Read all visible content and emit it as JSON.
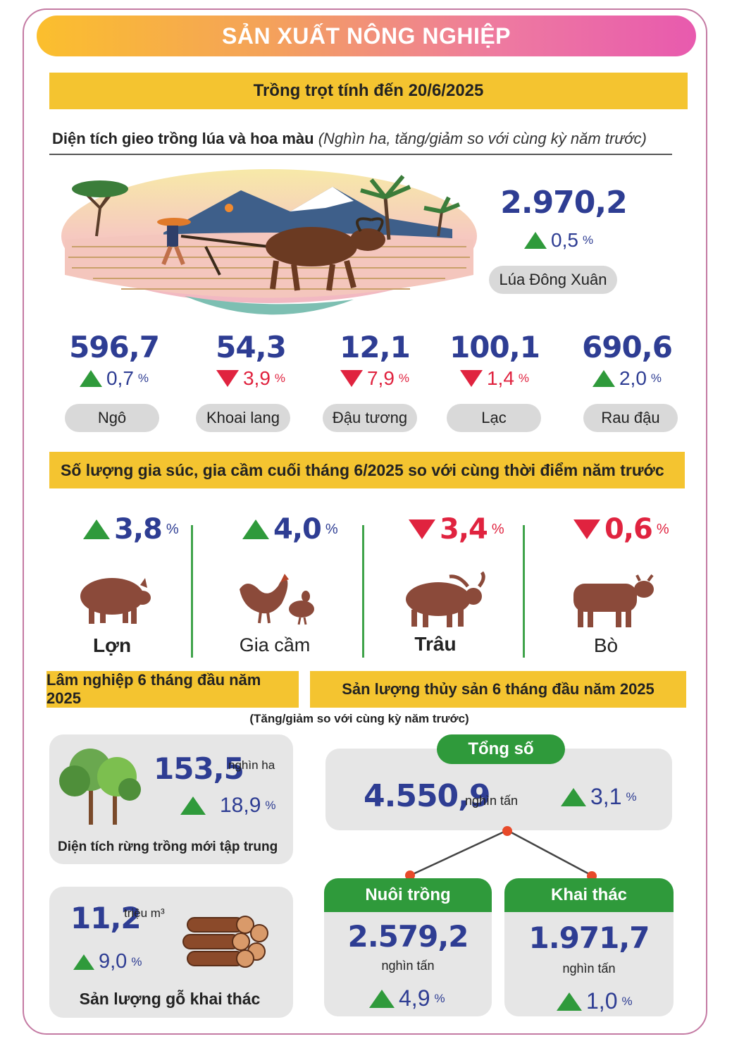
{
  "title": "SẢN XUẤT NÔNG NGHIỆP",
  "crops": {
    "header": "Trồng trọt tính đến 20/6/2025",
    "subtitle_bold": "Diện tích gieo trồng lúa và hoa màu",
    "subtitle_italic": "(Nghìn ha, tăng/giảm so với cùng kỳ năm trước)",
    "main": {
      "value": "2.970,2",
      "change": "0,5",
      "unit": "%",
      "direction": "up",
      "label": "Lúa Đông Xuân"
    },
    "items": [
      {
        "value": "596,7",
        "change": "0,7",
        "unit": "%",
        "direction": "up",
        "label": "Ngô"
      },
      {
        "value": "54,3",
        "change": "3,9",
        "unit": "%",
        "direction": "down",
        "label": "Khoai lang"
      },
      {
        "value": "12,1",
        "change": "7,9",
        "unit": "%",
        "direction": "down",
        "label": "Đậu tương"
      },
      {
        "value": "100,1",
        "change": "1,4",
        "unit": "%",
        "direction": "down",
        "label": "Lạc"
      },
      {
        "value": "690,6",
        "change": "2,0",
        "unit": "%",
        "direction": "up",
        "label": "Rau đậu"
      }
    ]
  },
  "livestock": {
    "header": "Số lượng gia súc, gia cầm cuối tháng 6/2025 so với cùng thời điểm năm trước",
    "items": [
      {
        "change": "3,8",
        "unit": "%",
        "direction": "up",
        "label": "Lợn",
        "icon": "pig-icon"
      },
      {
        "change": "4,0",
        "unit": "%",
        "direction": "up",
        "label": "Gia cầm",
        "icon": "poultry-icon"
      },
      {
        "change": "3,4",
        "unit": "%",
        "direction": "down",
        "label": "Trâu",
        "icon": "buffalo-icon"
      },
      {
        "change": "0,6",
        "unit": "%",
        "direction": "down",
        "label": "Bò",
        "icon": "cow-icon"
      }
    ]
  },
  "forestry": {
    "header": "Lâm nghiệp 6 tháng đầu năm 2025",
    "area": {
      "value": "153,5",
      "unit": "nghìn ha",
      "change": "18,9",
      "pct_unit": "%",
      "direction": "up",
      "label": "Diện tích rừng trồng mới tập trung"
    },
    "timber": {
      "value": "11,2",
      "unit": "triệu m³",
      "change": "9,0",
      "pct_unit": "%",
      "direction": "up",
      "label": "Sản lượng gỗ khai thác"
    }
  },
  "fishery": {
    "header": "Sản lượng thủy sản 6 tháng đầu năm 2025",
    "note": "(Tăng/giảm so với cùng kỳ năm trước)",
    "total": {
      "label": "Tổng số",
      "value": "4.550,9",
      "unit": "nghìn tấn",
      "change": "3,1",
      "pct_unit": "%",
      "direction": "up"
    },
    "aquaculture": {
      "label": "Nuôi trồng",
      "value": "2.579,2",
      "unit": "nghìn tấn",
      "change": "4,9",
      "pct_unit": "%",
      "direction": "up"
    },
    "capture": {
      "label": "Khai thác",
      "value": "1.971,7",
      "unit": "nghìn tấn",
      "change": "1,0",
      "pct_unit": "%",
      "direction": "up"
    }
  },
  "colors": {
    "up_triangle": "#2f9a3b",
    "down": "#e0233f",
    "number_blue": "#2e3d93",
    "header_yellow": "#f4c430",
    "green": "#2f9a3b"
  }
}
